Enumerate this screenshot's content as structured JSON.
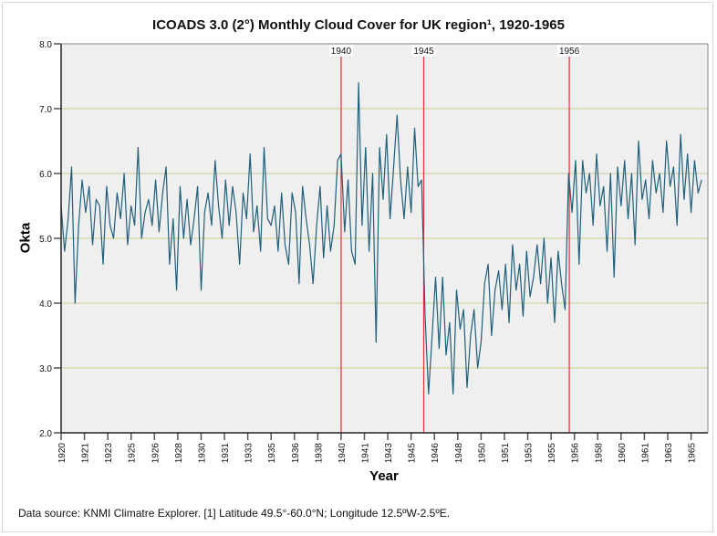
{
  "chart_data": {
    "type": "line",
    "title": "ICOADS 3.0 (2°) Monthly Cloud Cover for UK region¹, 1920-1965",
    "xlabel": "Year",
    "ylabel": "Okta",
    "xlim": [
      1920,
      1966.2
    ],
    "ylim": [
      2.0,
      8.0
    ],
    "yticks": [
      "2.0",
      "3.0",
      "4.0",
      "5.0",
      "6.0",
      "7.0",
      "8.0"
    ],
    "xticks": [
      "1920",
      "1921",
      "1923",
      "1925",
      "1926",
      "1928",
      "1930",
      "1931",
      "1933",
      "1935",
      "1936",
      "1938",
      "1940",
      "1941",
      "1943",
      "1945",
      "1946",
      "1948",
      "1950",
      "1951",
      "1953",
      "1955",
      "1956",
      "1958",
      "1960",
      "1961",
      "1963",
      "1965"
    ],
    "grid": "horizontal",
    "series_color": "#1f5f7a",
    "event_color": "#e8323a",
    "events": [
      {
        "label": "1940",
        "x": 1940.0
      },
      {
        "label": "1945",
        "x": 1945.9
      },
      {
        "label": "1956",
        "x": 1956.3
      }
    ],
    "x_start": 1920,
    "x_step": 0.25,
    "values": [
      5.5,
      4.8,
      5.3,
      6.1,
      4.0,
      5.2,
      5.9,
      5.4,
      5.8,
      4.9,
      5.6,
      5.5,
      4.6,
      5.8,
      5.2,
      5.0,
      5.7,
      5.3,
      6.0,
      4.9,
      5.5,
      5.2,
      6.4,
      5.0,
      5.4,
      5.6,
      5.2,
      5.9,
      5.1,
      5.7,
      6.1,
      4.6,
      5.3,
      4.2,
      5.8,
      5.0,
      5.6,
      4.9,
      5.3,
      5.8,
      4.2,
      5.4,
      5.7,
      5.2,
      6.2,
      5.5,
      5.0,
      5.9,
      5.2,
      5.8,
      5.4,
      4.6,
      5.7,
      5.3,
      6.3,
      5.1,
      5.5,
      4.8,
      6.4,
      5.3,
      5.2,
      5.5,
      4.8,
      5.7,
      4.9,
      4.6,
      5.7,
      5.4,
      4.3,
      5.8,
      5.3,
      4.9,
      4.3,
      5.2,
      5.8,
      4.7,
      5.5,
      4.8,
      5.2,
      6.2,
      6.3,
      5.1,
      5.9,
      4.8,
      4.6,
      7.4,
      5.2,
      6.4,
      4.8,
      6.0,
      3.4,
      6.4,
      5.6,
      6.6,
      5.3,
      6.1,
      6.9,
      5.9,
      5.3,
      6.1,
      5.4,
      6.7,
      5.8,
      5.9,
      3.8,
      2.6,
      3.5,
      4.4,
      3.3,
      4.4,
      3.2,
      3.7,
      2.6,
      4.2,
      3.6,
      3.9,
      2.7,
      3.5,
      3.9,
      3.0,
      3.4,
      4.3,
      4.6,
      3.5,
      4.2,
      4.5,
      3.9,
      4.6,
      3.7,
      4.9,
      4.2,
      4.6,
      3.8,
      4.8,
      4.1,
      4.4,
      4.9,
      4.3,
      5.0,
      4.0,
      4.7,
      3.7,
      4.8,
      4.3,
      3.9,
      6.0,
      5.4,
      6.2,
      4.6,
      6.2,
      5.7,
      6.0,
      5.2,
      6.3,
      5.5,
      5.8,
      4.8,
      6.0,
      4.4,
      6.1,
      5.5,
      6.2,
      5.3,
      6.0,
      4.9,
      6.5,
      5.6,
      5.9,
      5.3,
      6.2,
      5.7,
      6.0,
      5.4,
      6.5,
      5.8,
      6.1,
      5.2,
      6.6,
      5.6,
      6.3,
      5.4,
      6.2,
      5.7,
      5.9
    ],
    "footnote": "Data source: KNMI Climatre Explorer. [1] Latitude 49.5°-60.0°N; Longitude 12.5ºW-2.5ºE."
  }
}
